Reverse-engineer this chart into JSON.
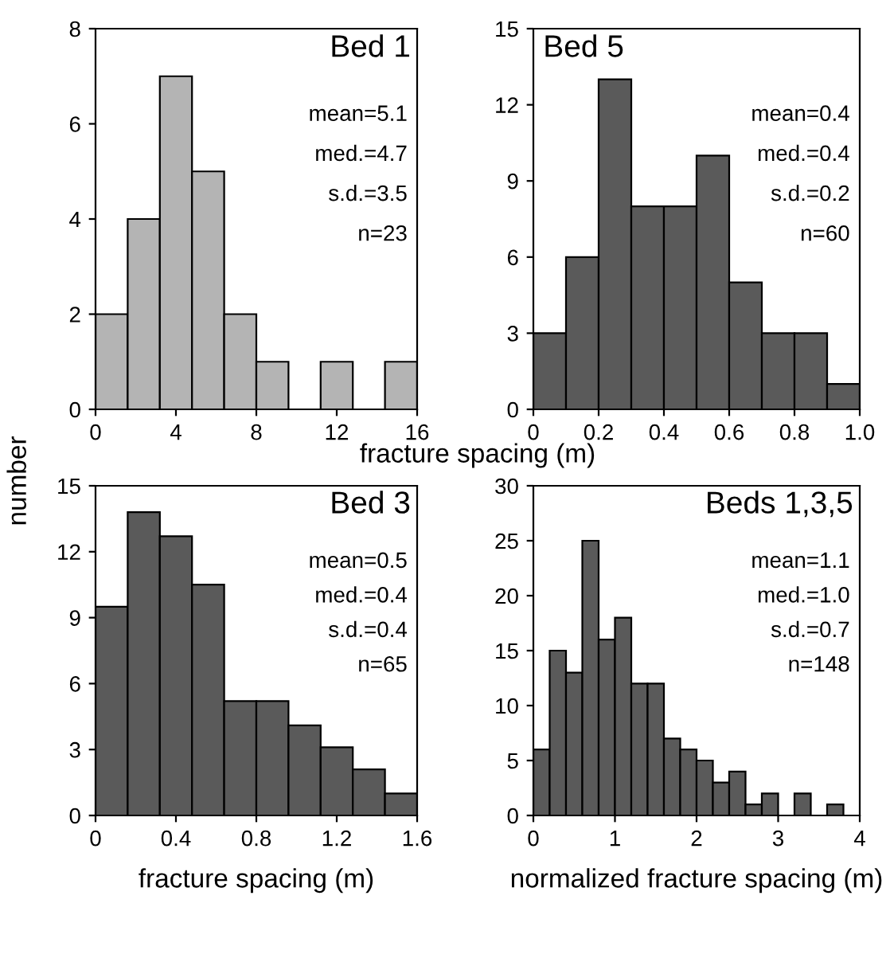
{
  "chart_data": [
    {
      "type": "histogram",
      "title": "Bed 1",
      "ylabel": "number",
      "xlabel": "fracture spacing (m)",
      "bins": [
        0,
        1.6,
        3.2,
        4.8,
        6.4,
        8,
        9.6,
        11.2,
        12.8,
        14.4,
        16
      ],
      "values": [
        2,
        4,
        7,
        5,
        2,
        1,
        0,
        1,
        0,
        1
      ],
      "color": "#b4b4b4",
      "xlim": [
        0,
        16
      ],
      "ylim": [
        0,
        8
      ],
      "xticks": [
        0,
        4,
        8,
        12,
        16
      ],
      "yticks": [
        0,
        2,
        4,
        6,
        8
      ],
      "annotations": [
        "mean=5.1",
        "med.=4.7",
        "s.d.=3.5",
        "n=23"
      ]
    },
    {
      "type": "histogram",
      "title": "Bed 5",
      "bins": [
        0,
        0.1,
        0.2,
        0.3,
        0.4,
        0.5,
        0.6,
        0.7,
        0.8,
        0.9,
        1.0
      ],
      "values": [
        3,
        6,
        13,
        8,
        8,
        10,
        5,
        3,
        3,
        1
      ],
      "color": "#5a5a5a",
      "xlim": [
        0,
        1.0
      ],
      "ylim": [
        0,
        15
      ],
      "xticks": [
        0,
        0.2,
        0.4,
        0.6,
        0.8,
        {
          "value": 1.0,
          "label": "1.0"
        }
      ],
      "yticks": [
        0,
        3,
        6,
        9,
        12,
        15
      ],
      "annotations": [
        "mean=0.4",
        "med.=0.4",
        "s.d.=0.2",
        "n=60"
      ]
    },
    {
      "type": "histogram",
      "title": "Bed 3",
      "xlabel": "fracture spacing (m)",
      "bins": [
        0,
        0.16,
        0.32,
        0.48,
        0.64,
        0.8,
        0.96,
        1.12,
        1.28,
        1.44,
        1.6
      ],
      "values": [
        9.5,
        13.8,
        12.7,
        10.5,
        5.2,
        5.2,
        4.1,
        3.1,
        2.1,
        1
      ],
      "color": "#5a5a5a",
      "xlim": [
        0,
        1.6
      ],
      "ylim": [
        0,
        15
      ],
      "xticks": [
        0,
        0.4,
        0.8,
        1.2,
        1.6
      ],
      "yticks": [
        0,
        3,
        6,
        9,
        12,
        15
      ],
      "annotations": [
        "mean=0.5",
        "med.=0.4",
        "s.d.=0.4",
        "n=65"
      ]
    },
    {
      "type": "histogram",
      "title": "Beds 1,3,5",
      "xlabel": "normalized fracture spacing (m)",
      "bins": [
        0,
        0.2,
        0.4,
        0.6,
        0.8,
        1.0,
        1.2,
        1.4,
        1.6,
        1.8,
        2.0,
        2.2,
        2.4,
        2.6,
        2.8,
        3.0,
        3.2,
        3.4,
        3.6,
        3.8
      ],
      "values": [
        6,
        15,
        13,
        25,
        16,
        18,
        12,
        12,
        7,
        6,
        5,
        3,
        4,
        1,
        2,
        0,
        2,
        0,
        1
      ],
      "color": "#5a5a5a",
      "xlim": [
        0,
        4
      ],
      "ylim": [
        0,
        30
      ],
      "xticks": [
        0,
        1,
        2,
        3,
        4
      ],
      "yticks": [
        0,
        5,
        10,
        15,
        20,
        25,
        30
      ],
      "annotations": [
        "mean=1.1",
        "med.=1.0",
        "s.d.=0.7",
        "n=148"
      ]
    }
  ]
}
